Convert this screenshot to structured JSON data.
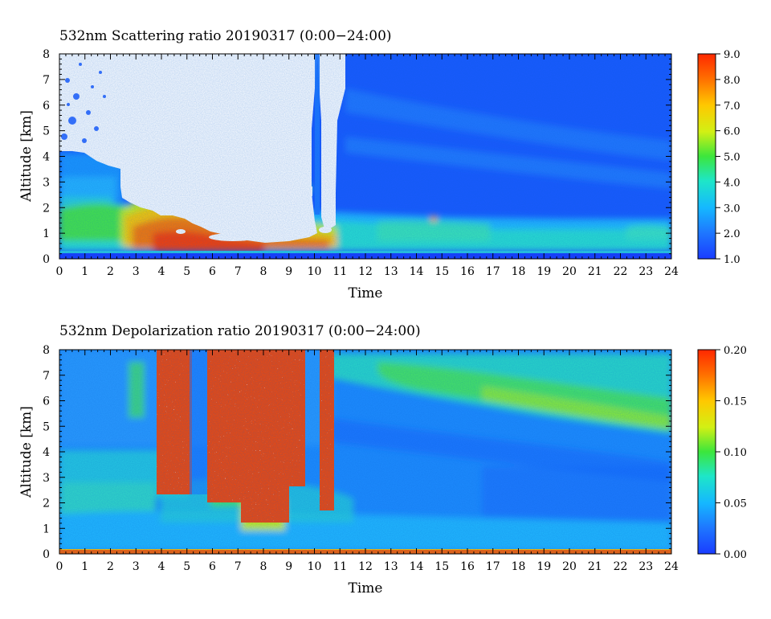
{
  "chart_data": [
    {
      "type": "heatmap",
      "title": "532nm Scattering ratio  20190317 (0:00−24:00)",
      "xlabel": "Time",
      "ylabel": "Altitude [km]",
      "xlim": [
        0,
        24
      ],
      "ylim": [
        0,
        8
      ],
      "x_ticks": [
        "0",
        "1",
        "2",
        "3",
        "4",
        "5",
        "6",
        "7",
        "8",
        "9",
        "10",
        "11",
        "12",
        "13",
        "14",
        "15",
        "16",
        "17",
        "18",
        "19",
        "20",
        "21",
        "22",
        "23",
        "24"
      ],
      "y_ticks": [
        "0",
        "1",
        "2",
        "3",
        "4",
        "5",
        "6",
        "7",
        "8"
      ],
      "colorbar": {
        "range": [
          1.0,
          9.0
        ],
        "ticks": [
          "1.0",
          "2.0",
          "3.0",
          "4.0",
          "5.0",
          "6.0",
          "7.0",
          "8.0",
          "9.0"
        ]
      },
      "features": [
        {
          "label": "white (saturated/cloud) region",
          "x_range": [
            0.3,
            10.5
          ],
          "altitude_top_km": 8,
          "altitude_base_km": [
            4.0,
            1.0
          ]
        },
        {
          "label": "high scattering layer",
          "x_range": [
            2.3,
            10.5
          ],
          "altitude_km": [
            0.5,
            2.2
          ],
          "value_range": [
            4,
            9
          ]
        },
        {
          "label": "boundary layer",
          "x_range": [
            0,
            24
          ],
          "altitude_km": [
            0.3,
            1.5
          ],
          "value_range": [
            2.5,
            4
          ]
        }
      ]
    },
    {
      "type": "heatmap",
      "title": "532nm Depolarization ratio  20190317 (0:00−24:00)",
      "xlabel": "Time",
      "ylabel": "Altitude [km]",
      "xlim": [
        0,
        24
      ],
      "ylim": [
        0,
        8
      ],
      "x_ticks": [
        "0",
        "1",
        "2",
        "3",
        "4",
        "5",
        "6",
        "7",
        "8",
        "9",
        "10",
        "11",
        "12",
        "13",
        "14",
        "15",
        "16",
        "17",
        "18",
        "19",
        "20",
        "21",
        "22",
        "23",
        "24"
      ],
      "y_ticks": [
        "0",
        "1",
        "2",
        "3",
        "4",
        "5",
        "6",
        "7",
        "8"
      ],
      "colorbar": {
        "range": [
          0.0,
          0.2
        ],
        "ticks": [
          "0.00",
          "0.05",
          "0.10",
          "0.15",
          "0.20"
        ]
      },
      "features": [
        {
          "label": "high depolarization columns",
          "time_ranges": [
            [
              3.8,
              5.0
            ],
            [
              5.8,
              7.8
            ],
            [
              7.8,
              8.8
            ],
            [
              9.2,
              9.7
            ],
            [
              10.2,
              10.6
            ]
          ],
          "altitude_km": [
            1.0,
            8.0
          ],
          "value_range": [
            0.15,
            0.2
          ]
        },
        {
          "label": "elevated layer",
          "x_range": [
            11,
            24
          ],
          "altitude_km": [
            4.5,
            7.5
          ],
          "value_range": [
            0.06,
            0.1
          ]
        },
        {
          "label": "surface layer",
          "x_range": [
            0,
            24
          ],
          "altitude_km": [
            0.0,
            0.15
          ],
          "value_range": [
            0.15,
            0.2
          ]
        }
      ]
    }
  ]
}
